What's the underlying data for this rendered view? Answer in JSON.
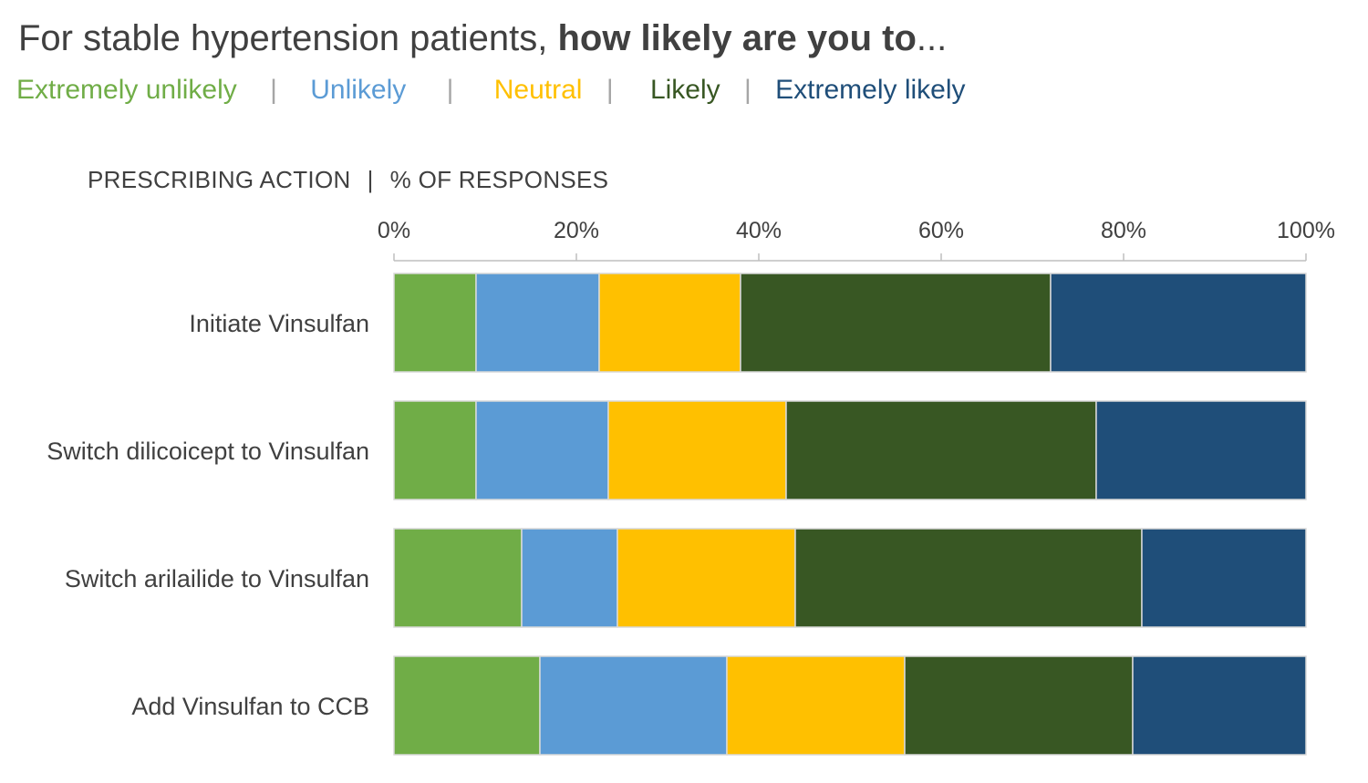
{
  "title": {
    "normal": "For stable hypertension patients, ",
    "bold": "how likely are you to",
    "suffix": "..."
  },
  "legend": {
    "separator": "|",
    "items": [
      {
        "label": "Extremely unlikely",
        "color": "#70ad47"
      },
      {
        "label": "Unlikely",
        "color": "#5b9bd5"
      },
      {
        "label": "Neutral",
        "color": "#ffc000"
      },
      {
        "label": "Likely",
        "color": "#385723"
      },
      {
        "label": "Extremely likely",
        "color": "#1f4e79"
      }
    ]
  },
  "subheading": {
    "left": "PRESCRIBING ACTION",
    "separator": "|",
    "right": "% OF RESPONSES"
  },
  "chart_data": {
    "type": "bar",
    "orientation": "horizontal",
    "stacked": true,
    "categories": [
      "Initiate Vinsulfan",
      "Switch dilicoicept to Vinsulfan",
      "Switch arilailide to Vinsulfan",
      "Add Vinsulfan to CCB"
    ],
    "series": [
      {
        "name": "Extremely unlikely",
        "color": "#70ad47",
        "values": [
          9,
          9,
          14,
          16
        ]
      },
      {
        "name": "Unlikely",
        "color": "#5b9bd5",
        "values": [
          13.5,
          14.5,
          10.5,
          20.5
        ]
      },
      {
        "name": "Neutral",
        "color": "#ffc000",
        "values": [
          15.5,
          19.5,
          19.5,
          19.5
        ]
      },
      {
        "name": "Likely",
        "color": "#385723",
        "values": [
          34,
          34,
          38,
          25
        ]
      },
      {
        "name": "Extremely likely",
        "color": "#1f4e79",
        "values": [
          28,
          23,
          18,
          19
        ]
      }
    ],
    "xaxis": {
      "ticks": [
        "0%",
        "20%",
        "40%",
        "60%",
        "80%",
        "100%"
      ],
      "range": [
        0,
        100
      ],
      "position": "top"
    },
    "grid": false,
    "legend_position": "top"
  }
}
